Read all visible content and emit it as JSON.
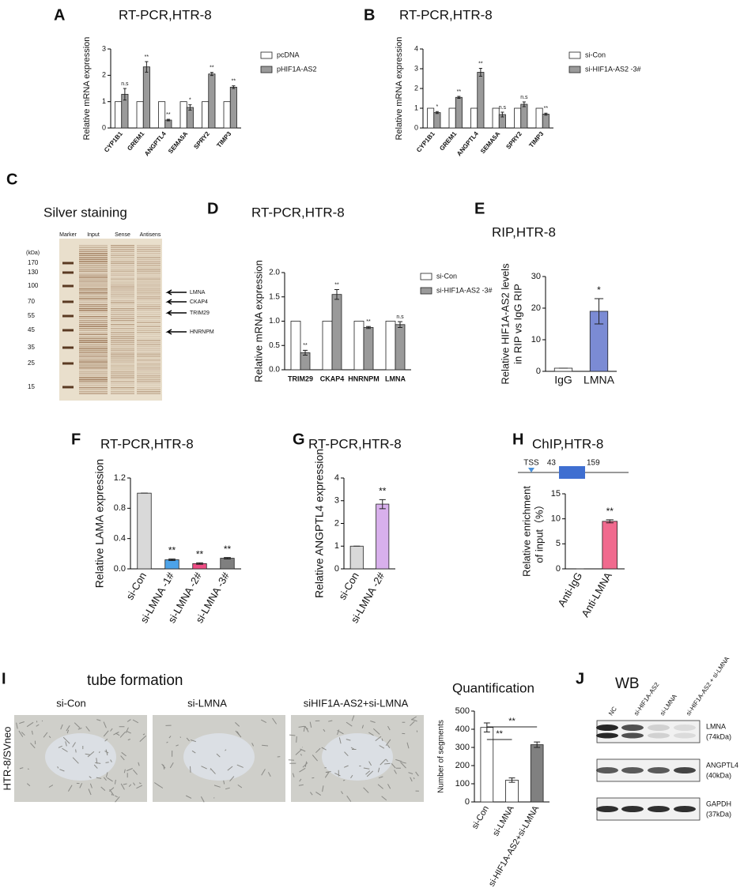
{
  "chart_data": [
    {
      "panel": "A",
      "type": "bar",
      "title": "RT-PCR,HTR-8",
      "ylabel": "Relative mRNA expression",
      "categories": [
        "CYP1B1",
        "GREM1",
        "ANGPTL4",
        "SEMA5A",
        "SPRY2",
        "TIMP3"
      ],
      "series": [
        {
          "name": "pcDNA",
          "color": "#ffffff",
          "values": [
            1,
            1,
            1,
            1,
            1,
            1
          ]
        },
        {
          "name": "pHIF1A-AS2",
          "color": "#9a9a9a",
          "values": [
            1.28,
            2.32,
            0.3,
            0.78,
            2.05,
            1.55
          ],
          "errors": [
            0.22,
            0.2,
            0.03,
            0.1,
            0.06,
            0.05
          ],
          "annotations": [
            "n.s",
            "**",
            "**",
            "*",
            "**",
            "**"
          ]
        }
      ],
      "ylim": [
        0,
        3
      ],
      "yticks": [
        0,
        1,
        2,
        3
      ]
    },
    {
      "panel": "B",
      "type": "bar",
      "title": "RT-PCR,HTR-8",
      "ylabel": "Relative mRNA expression",
      "categories": [
        "CYP1B1",
        "GREM1",
        "ANGPTL4",
        "SEMA5A",
        "SPRY2",
        "TIMP3"
      ],
      "series": [
        {
          "name": "si-Con",
          "color": "#ffffff",
          "values": [
            1,
            1,
            1,
            1,
            1,
            1
          ]
        },
        {
          "name": "si-HIF1A-AS2 -3#",
          "color": "#9a9a9a",
          "values": [
            0.78,
            1.55,
            2.82,
            0.68,
            1.2,
            0.7
          ],
          "errors": [
            0.05,
            0.05,
            0.2,
            0.12,
            0.12,
            0.05
          ],
          "annotations": [
            "*",
            "**",
            "**",
            "n.s",
            "n.s",
            "**"
          ]
        }
      ],
      "ylim": [
        0,
        4
      ],
      "yticks": [
        0,
        1,
        2,
        3,
        4
      ]
    },
    {
      "panel": "D",
      "type": "bar",
      "title": "RT-PCR,HTR-8",
      "ylabel": "Relative mRNA expression",
      "categories": [
        "TRIM29",
        "CKAP4",
        "HNRNPM",
        "LMNA"
      ],
      "series": [
        {
          "name": "si-Con",
          "color": "#ffffff",
          "values": [
            1,
            1,
            1,
            1
          ]
        },
        {
          "name": "si-HIF1A-AS2 -3#",
          "color": "#9a9a9a",
          "values": [
            0.35,
            1.55,
            0.87,
            0.93
          ],
          "errors": [
            0.05,
            0.1,
            0.02,
            0.06
          ],
          "annotations": [
            "**",
            "**",
            "**",
            "n.s"
          ]
        }
      ],
      "ylim": [
        0,
        2
      ],
      "yticks": [
        {
          "value": 0,
          "label": "0.0"
        },
        0.5,
        {
          "value": 1,
          "label": "1.0"
        },
        1.5,
        {
          "value": 2,
          "label": "2.0"
        }
      ]
    },
    {
      "panel": "E",
      "type": "bar",
      "title": "RIP,HTR-8",
      "ylabel": [
        "Relative HIF1A-AS2 levels",
        "in RIP vs IgG RIP"
      ],
      "categories": [
        "IgG",
        "LMNA"
      ],
      "values": [
        1,
        19
      ],
      "errors": [
        0,
        4
      ],
      "colors": [
        "#ffffff",
        "#7b8bd4"
      ],
      "annotations": [
        null,
        "*"
      ],
      "ylim": [
        0,
        30
      ],
      "yticks": [
        0,
        10,
        20,
        30
      ]
    },
    {
      "panel": "F",
      "type": "bar",
      "title": "RT-PCR,HTR-8",
      "ylabel": "Relative LAMA expression",
      "categories": [
        "si-Con",
        "si-LMNA -1#",
        "si-LMNA -2#",
        "si-LMNA -3#"
      ],
      "values": [
        1,
        0.12,
        0.07,
        0.14
      ],
      "errors": [
        0,
        0.01,
        0.01,
        0.01
      ],
      "colors": [
        "#d9d9d9",
        "#4da3e8",
        "#ee4d84",
        "#7f7f7f"
      ],
      "annotations": [
        null,
        "**",
        "**",
        "**"
      ],
      "ylim": [
        0,
        1.2
      ],
      "yticks": [
        {
          "value": 0,
          "label": "0.0"
        },
        0.4,
        0.8,
        1.2
      ]
    },
    {
      "panel": "G",
      "type": "bar",
      "title": "RT-PCR,HTR-8",
      "ylabel": "Relative ANGPTL4 expression",
      "categories": [
        "si-Con",
        "si-LMNA -2#"
      ],
      "values": [
        1,
        2.85
      ],
      "errors": [
        0,
        0.2
      ],
      "colors": [
        "#d9d9d9",
        "#d8b0ec"
      ],
      "annotations": [
        null,
        "**"
      ],
      "ylim": [
        0,
        4
      ],
      "yticks": [
        0,
        1,
        2,
        3,
        4
      ]
    },
    {
      "panel": "H",
      "type": "bar",
      "title": "ChIP,HTR-8",
      "ylabel": [
        "Relative enrichment",
        "of input（%）"
      ],
      "categories": [
        "Anti-IgG",
        "Anti-LMNA"
      ],
      "values": [
        0,
        9.5
      ],
      "errors": [
        0,
        0.3
      ],
      "colors": [
        "#ffffff",
        "#f06a8e"
      ],
      "annotations": [
        null,
        "**"
      ],
      "ylim": [
        0,
        15
      ],
      "yticks": [
        0,
        5,
        10,
        15
      ],
      "promoter": {
        "tss": "TSS",
        "start": 43,
        "end": 159
      }
    },
    {
      "type": "bar",
      "title": "Quantification",
      "ylabel": "Number of segments",
      "categories": [
        "si-Con",
        "si-LMNA",
        "si-HIF1A-AS2+si-LMNA"
      ],
      "values": [
        410,
        120,
        315
      ],
      "errors": [
        25,
        12,
        15
      ],
      "colors": [
        "#ffffff",
        "#ffffff",
        "#808080"
      ],
      "brackets": [
        "**",
        "**"
      ],
      "ylim": [
        0,
        500
      ],
      "yticks": [
        0,
        100,
        200,
        300,
        400,
        500
      ]
    }
  ],
  "gel": {
    "panel": "C",
    "title": "Silver staining",
    "lanes": [
      "Marker",
      "Input",
      "Sense",
      "Antisens"
    ],
    "unit": "(kDa)",
    "markers": [
      170,
      130,
      100,
      70,
      55,
      45,
      35,
      25,
      15
    ],
    "bands": [
      "LMNA",
      "CKAP4",
      "TRIM29",
      "HNRNPM"
    ]
  },
  "tube": {
    "panel": "I",
    "title": "tube formation",
    "row_label": "HTR-8/SVneo",
    "conditions": [
      "si-Con",
      "si-LMNA",
      "siHIF1A-AS2+si-LMNA"
    ]
  },
  "wb": {
    "panel": "J",
    "title": "WB",
    "lanes": [
      "NC",
      "si-HIF1A-AS2",
      "si-LMNA",
      "si-HIF1A-AS2 + si-LMNA"
    ],
    "proteins": [
      {
        "name": "LMNA",
        "size": "(74kDa)"
      },
      {
        "name": "ANGPTL4",
        "size": "(40kDa)"
      },
      {
        "name": "GAPDH",
        "size": "(37kDa)"
      }
    ]
  }
}
